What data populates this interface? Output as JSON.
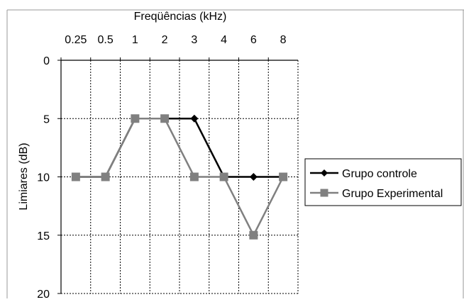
{
  "chart_data": {
    "type": "line",
    "title": "Freqüências (kHz)",
    "xlabel": "Freqüências (kHz)",
    "ylabel": "Limiares (dB)",
    "categories": [
      "0.25",
      "0.5",
      "1",
      "2",
      "3",
      "4",
      "6",
      "8"
    ],
    "y_ticks": [
      "0",
      "5",
      "10",
      "15",
      "20"
    ],
    "ylim": [
      0,
      20
    ],
    "y_inverted": true,
    "x_axis_position": "top",
    "grid": "dotted-vertical-and-horizontal",
    "legend_position": "right",
    "series": [
      {
        "name": "Grupo controle",
        "marker": "diamond",
        "color": "#000000",
        "values": [
          10,
          10,
          5,
          5,
          5,
          10,
          10,
          10
        ]
      },
      {
        "name": "Grupo Experimental",
        "marker": "square",
        "color": "#808080",
        "values": [
          10,
          10,
          5,
          5,
          10,
          10,
          15,
          10
        ]
      }
    ]
  }
}
